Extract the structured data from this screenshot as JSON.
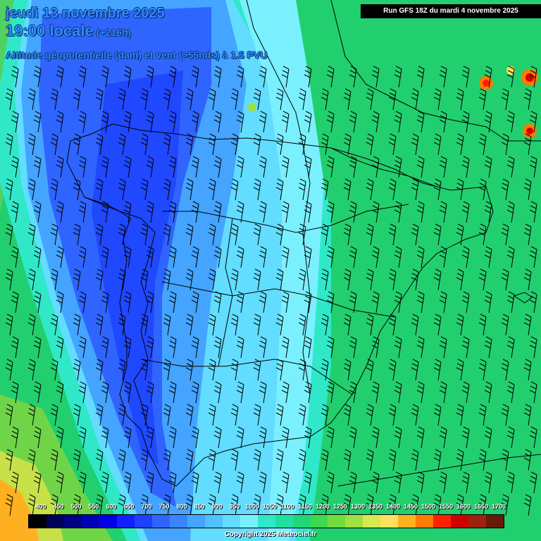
{
  "header": {
    "date": "jeudi 13 novembre 2025",
    "time": "19:00 locale",
    "lead": "(+216h)",
    "parameter": "Altitude géopotentielle (dam) et vent (>55nds) à 1.5 PVU",
    "run": "Run GFS 18Z du mardi 4 novembre 2025"
  },
  "legend": {
    "values": [
      "400",
      "450",
      "500",
      "550",
      "600",
      "650",
      "700",
      "750",
      "800",
      "850",
      "900",
      "950",
      "1000",
      "1050",
      "1100",
      "1150",
      "1200",
      "1250",
      "1300",
      "1350",
      "1400",
      "1450",
      "1500",
      "1550",
      "1600",
      "1650",
      "1700"
    ],
    "colors": [
      "#000000",
      "#00005a",
      "#000085",
      "#0000b8",
      "#0000e6",
      "#1020ff",
      "#2040ff",
      "#2f64ff",
      "#3a85ff",
      "#44a4ff",
      "#50c0ff",
      "#62dcff",
      "#7af0ff",
      "#30e8c8",
      "#20e0a0",
      "#20d878",
      "#40d850",
      "#70dc40",
      "#a0e040",
      "#d8e850",
      "#ffe060",
      "#ffb020",
      "#ff7a00",
      "#ff2000",
      "#d00000",
      "#a02010",
      "#6a1a08"
    ]
  },
  "footer": "Copyright 2025 Meteociel.fr"
}
